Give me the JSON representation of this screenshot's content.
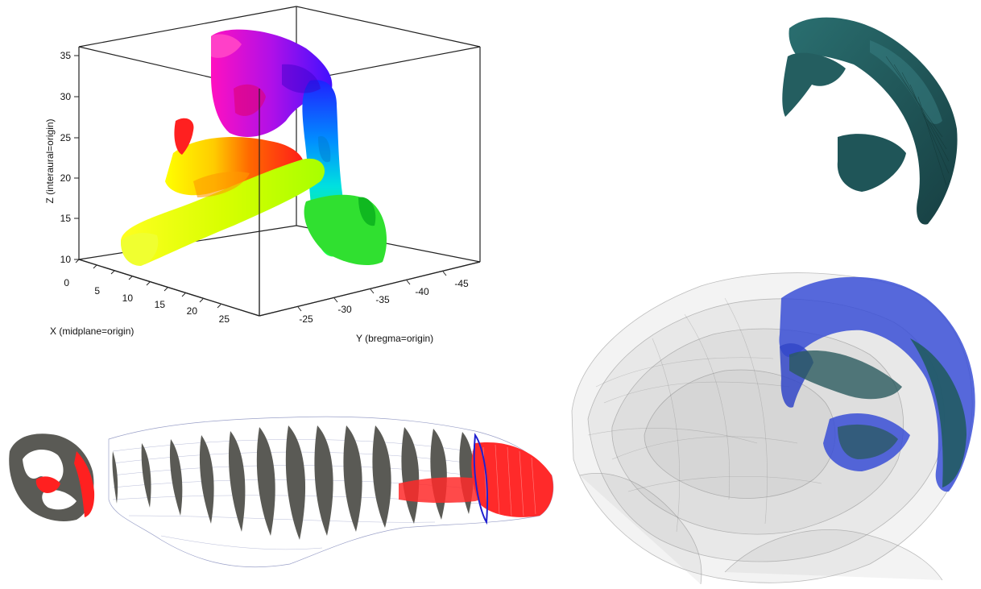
{
  "plot": {
    "x_label": "X (midplane=origin)",
    "y_label": "Y (bregma=origin)",
    "z_label": "Z (interaural=origin)",
    "x_ticks": [
      "0",
      "5",
      "10",
      "15",
      "20",
      "25"
    ],
    "y_ticks": [
      "-25",
      "-30",
      "-35",
      "-40",
      "-45"
    ],
    "z_ticks": [
      "10",
      "15",
      "20",
      "25",
      "30",
      "35"
    ]
  },
  "colors": {
    "teal": "#1f5a5c",
    "blue_overlay": "#3a4fd6",
    "red_highlight": "#ff2a2a",
    "section_gray": "#5a5a55"
  }
}
